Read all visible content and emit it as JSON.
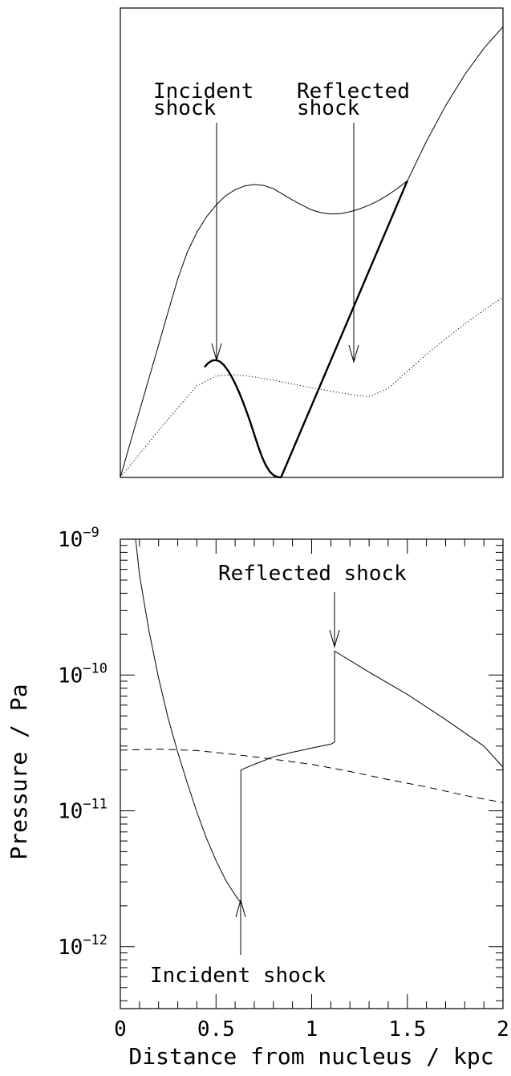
{
  "chart_data": [
    {
      "type": "line",
      "title": "",
      "xlabel": "",
      "ylabel": "",
      "axes": "box without ticks",
      "annotations": [
        {
          "lines": [
            "Incident",
            "shock"
          ],
          "points_to": "peak of thick curve"
        },
        {
          "lines": [
            "Reflected",
            "shock"
          ],
          "points_to": "thick straight line"
        }
      ],
      "series": [
        {
          "style": "thin solid",
          "x": [
            0.0,
            0.05,
            0.1,
            0.15,
            0.2,
            0.25,
            0.3,
            0.35,
            0.4,
            0.45,
            0.5,
            0.55,
            0.6,
            0.65,
            0.7,
            0.75,
            0.8,
            0.85,
            0.9,
            0.95,
            1.0,
            1.05,
            1.1,
            1.15,
            1.2,
            1.25,
            1.3,
            1.35,
            1.4,
            1.45,
            1.5
          ],
          "y": [
            0.0,
            0.071,
            0.141,
            0.212,
            0.282,
            0.353,
            0.423,
            0.48,
            0.522,
            0.555,
            0.58,
            0.6,
            0.613,
            0.621,
            0.624,
            0.622,
            0.615,
            0.603,
            0.591,
            0.58,
            0.57,
            0.564,
            0.561,
            0.562,
            0.566,
            0.572,
            0.58,
            0.59,
            0.602,
            0.616,
            0.632
          ]
        },
        {
          "style": "thick solid",
          "x": [
            0.44,
            0.46,
            0.48,
            0.5,
            0.52,
            0.54,
            0.56,
            0.58,
            0.6,
            0.62,
            0.64,
            0.66,
            0.68,
            0.7,
            0.72,
            0.74,
            0.76,
            0.78,
            0.8,
            0.82,
            0.84
          ],
          "y": [
            0.235,
            0.244,
            0.249,
            0.25,
            0.247,
            0.24,
            0.229,
            0.216,
            0.2,
            0.182,
            0.162,
            0.14,
            0.117,
            0.092,
            0.067,
            0.044,
            0.026,
            0.013,
            0.005,
            0.001,
            0.0
          ]
        },
        {
          "style": "thick solid",
          "x": [
            0.84,
            1.5
          ],
          "y": [
            0.0,
            0.632
          ]
        },
        {
          "style": "thin solid",
          "x": [
            1.5,
            1.6,
            1.7,
            1.8,
            1.9,
            2.0
          ],
          "y": [
            0.632,
            0.716,
            0.792,
            0.858,
            0.914,
            0.96
          ]
        },
        {
          "style": "dotted",
          "x": [
            0.0,
            0.1,
            0.2,
            0.3,
            0.4,
            0.5,
            0.6,
            0.7,
            0.8,
            0.9,
            1.0,
            1.1,
            1.2,
            1.3,
            1.4,
            1.5,
            1.6,
            1.7,
            1.8,
            1.9,
            2.0
          ],
          "y": [
            0.0,
            0.05,
            0.1,
            0.148,
            0.195,
            0.216,
            0.219,
            0.214,
            0.207,
            0.199,
            0.191,
            0.184,
            0.177,
            0.172,
            0.19,
            0.226,
            0.262,
            0.295,
            0.327,
            0.356,
            0.384
          ]
        }
      ],
      "xlim": [
        0,
        2
      ],
      "ylim": [
        0,
        1
      ]
    },
    {
      "type": "line",
      "title": "",
      "xlabel": "Distance from nucleus / kpc",
      "ylabel": "Pressure / Pa",
      "xlim": [
        0,
        2
      ],
      "ylim": [
        3.5e-13,
        1e-09
      ],
      "yscale": "log",
      "x_ticks": [
        "0",
        "0.5",
        "1",
        "1.5",
        "2"
      ],
      "x_tick_values": [
        0,
        0.5,
        1,
        1.5,
        2
      ],
      "y_ticks": [
        {
          "base": "10",
          "exp": "−9",
          "value": 1e-09
        },
        {
          "base": "10",
          "exp": "−10",
          "value": 1e-10
        },
        {
          "base": "10",
          "exp": "−11",
          "value": 1e-11
        },
        {
          "base": "10",
          "exp": "−12",
          "value": 1e-12
        }
      ],
      "annotations": [
        {
          "text": "Reflected shock",
          "x": 1.12,
          "y": 1.5e-10
        },
        {
          "text": "Incident shock",
          "x": 0.63,
          "y": 2.2e-12
        }
      ],
      "series": [
        {
          "style": "solid",
          "x": [
            0.08,
            0.1,
            0.15,
            0.2,
            0.25,
            0.3,
            0.35,
            0.4,
            0.45,
            0.5,
            0.55,
            0.6,
            0.63,
            0.63,
            0.7,
            0.8,
            0.9,
            1.0,
            1.1,
            1.12,
            1.12,
            1.3,
            1.5,
            1.7,
            1.9,
            2.0
          ],
          "y": [
            1e-09,
            5.5e-10,
            2.1e-10,
            9.5e-11,
            4.8e-11,
            2.7e-11,
            1.6e-11,
            9.8e-12,
            6.3e-12,
            4.3e-12,
            3.1e-12,
            2.4e-12,
            2.1e-12,
            2e-11,
            2.2e-11,
            2.5e-11,
            2.7e-11,
            2.9e-11,
            3.1e-11,
            3.2e-11,
            1.5e-10,
            1.05e-10,
            7.2e-11,
            4.7e-11,
            3e-11,
            2.1e-11
          ]
        },
        {
          "style": "dashed",
          "x": [
            0.0,
            0.2,
            0.4,
            0.6,
            0.8,
            1.0,
            1.2,
            1.4,
            1.6,
            1.8,
            2.0
          ],
          "y": [
            2.8e-11,
            2.85e-11,
            2.78e-11,
            2.6e-11,
            2.4e-11,
            2.2e-11,
            1.95e-11,
            1.7e-11,
            1.5e-11,
            1.3e-11,
            1.15e-11
          ]
        }
      ]
    }
  ]
}
